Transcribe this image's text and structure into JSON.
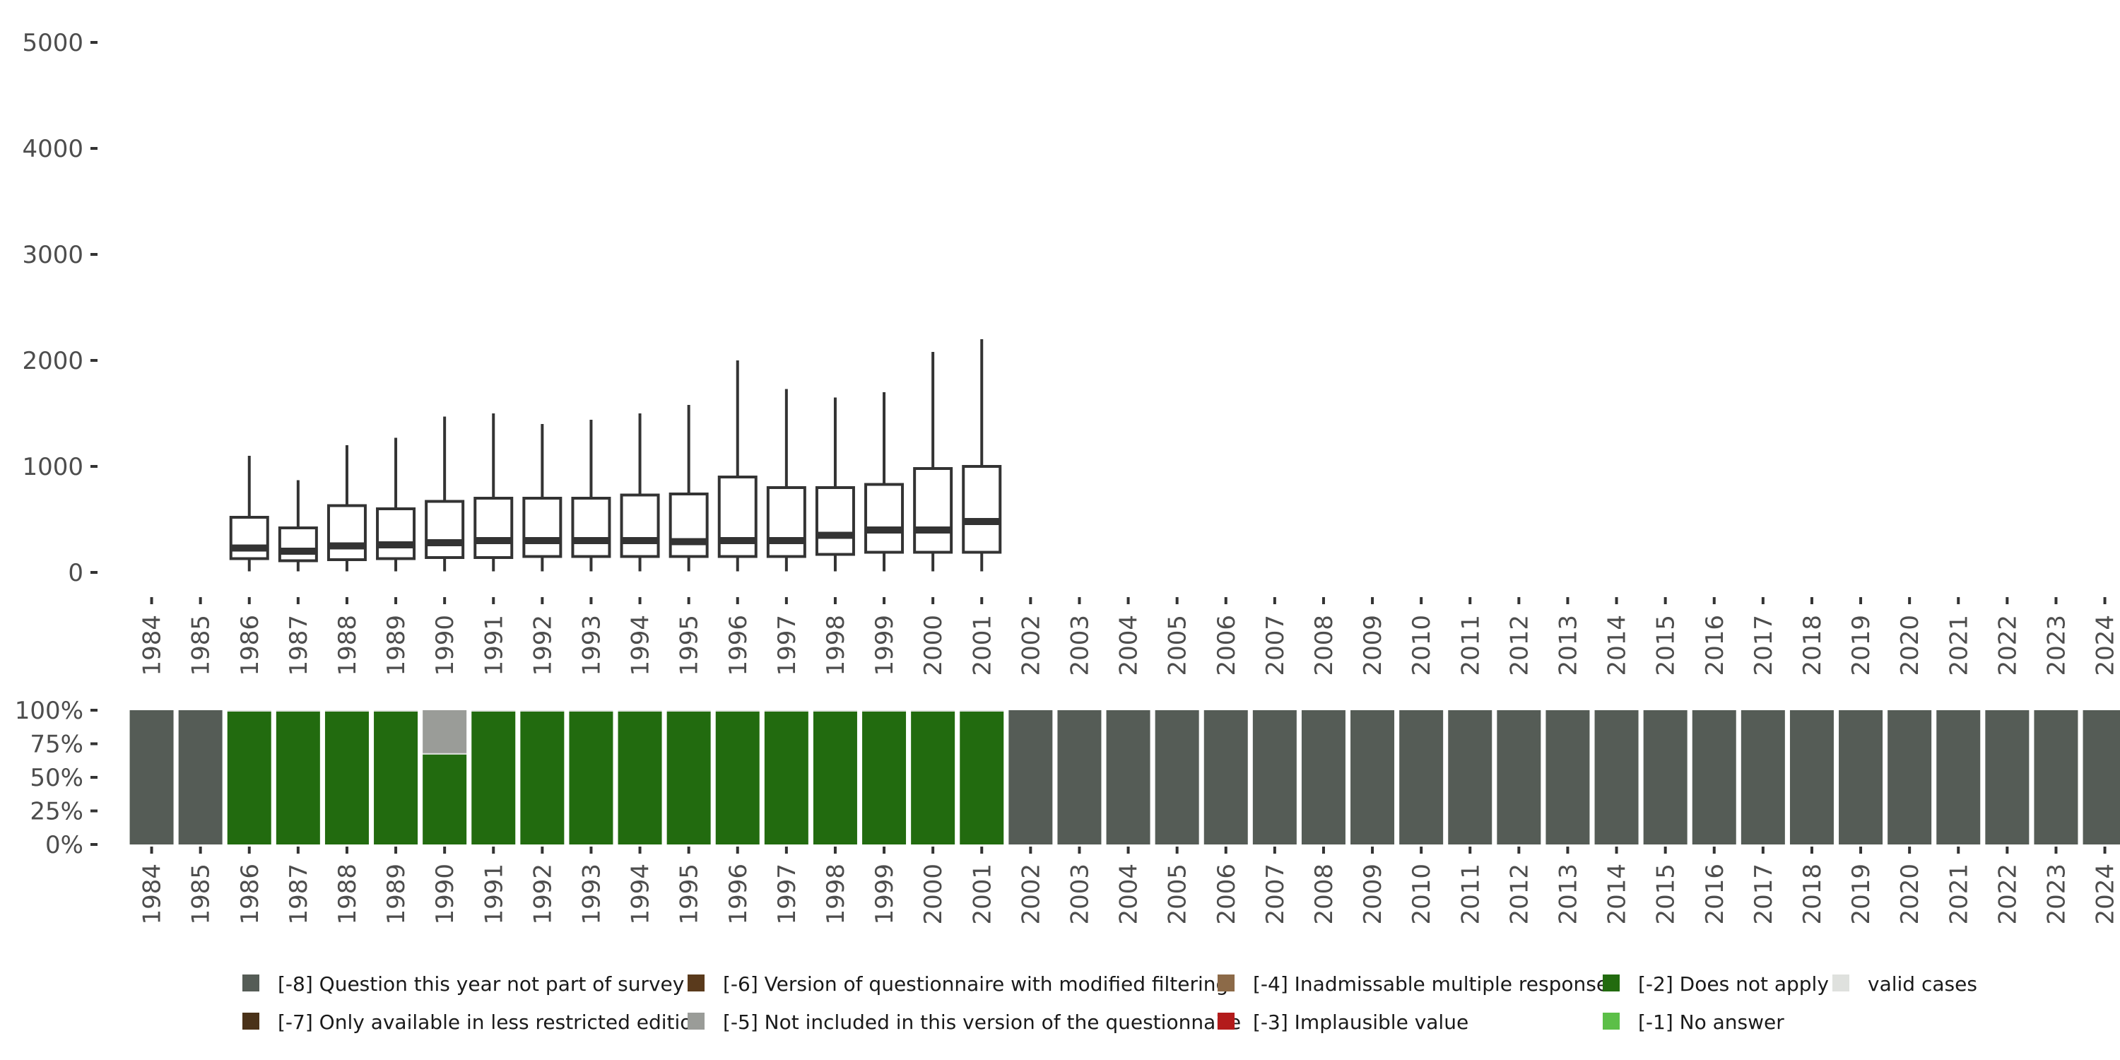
{
  "chart_data": [
    {
      "type": "boxplot",
      "title": "",
      "xlabel": "",
      "ylabel": "",
      "ylim": [
        0,
        5000
      ],
      "y_ticks": [
        0,
        1000,
        2000,
        3000,
        4000,
        5000
      ],
      "y_tick_labels": [
        "0",
        "1000",
        "2000",
        "3000",
        "4000",
        "5000"
      ],
      "categories": [
        "1984",
        "1985",
        "1986",
        "1987",
        "1988",
        "1989",
        "1990",
        "1991",
        "1992",
        "1993",
        "1994",
        "1995",
        "1996",
        "1997",
        "1998",
        "1999",
        "2000",
        "2001",
        "2002",
        "2003",
        "2004",
        "2005",
        "2006",
        "2007",
        "2008",
        "2009",
        "2010",
        "2011",
        "2012",
        "2013",
        "2014",
        "2015",
        "2016",
        "2017",
        "2018",
        "2019",
        "2020",
        "2021",
        "2022",
        "2023",
        "2024"
      ],
      "boxes": [
        {
          "year": "1986",
          "min": 10,
          "q1": 130,
          "median": 230,
          "q3": 520,
          "max": 1100
        },
        {
          "year": "1987",
          "min": 10,
          "q1": 110,
          "median": 200,
          "q3": 420,
          "max": 870
        },
        {
          "year": "1988",
          "min": 10,
          "q1": 120,
          "median": 250,
          "q3": 630,
          "max": 1200
        },
        {
          "year": "1989",
          "min": 10,
          "q1": 130,
          "median": 260,
          "q3": 600,
          "max": 1270
        },
        {
          "year": "1990",
          "min": 10,
          "q1": 140,
          "median": 280,
          "q3": 670,
          "max": 1470
        },
        {
          "year": "1991",
          "min": 10,
          "q1": 140,
          "median": 300,
          "q3": 700,
          "max": 1500
        },
        {
          "year": "1992",
          "min": 10,
          "q1": 150,
          "median": 300,
          "q3": 700,
          "max": 1400
        },
        {
          "year": "1993",
          "min": 10,
          "q1": 150,
          "median": 300,
          "q3": 700,
          "max": 1440
        },
        {
          "year": "1994",
          "min": 10,
          "q1": 150,
          "median": 300,
          "q3": 730,
          "max": 1500
        },
        {
          "year": "1995",
          "min": 10,
          "q1": 150,
          "median": 290,
          "q3": 740,
          "max": 1580
        },
        {
          "year": "1996",
          "min": 10,
          "q1": 150,
          "median": 300,
          "q3": 900,
          "max": 2000
        },
        {
          "year": "1997",
          "min": 10,
          "q1": 150,
          "median": 300,
          "q3": 800,
          "max": 1730
        },
        {
          "year": "1998",
          "min": 10,
          "q1": 170,
          "median": 350,
          "q3": 800,
          "max": 1650
        },
        {
          "year": "1999",
          "min": 10,
          "q1": 190,
          "median": 400,
          "q3": 830,
          "max": 1700
        },
        {
          "year": "2000",
          "min": 10,
          "q1": 190,
          "median": 400,
          "q3": 980,
          "max": 2080
        },
        {
          "year": "2001",
          "min": 10,
          "q1": 190,
          "median": 480,
          "q3": 1000,
          "max": 2200
        }
      ]
    },
    {
      "type": "stacked_bar",
      "title": "",
      "xlabel": "",
      "ylabel": "",
      "ylim": [
        0,
        100
      ],
      "y_ticks": [
        0,
        25,
        50,
        75,
        100
      ],
      "y_tick_labels": [
        "0%",
        "25%",
        "50%",
        "75%",
        "100%"
      ],
      "categories": [
        "1984",
        "1985",
        "1986",
        "1987",
        "1988",
        "1989",
        "1990",
        "1991",
        "1992",
        "1993",
        "1994",
        "1995",
        "1996",
        "1997",
        "1998",
        "1999",
        "2000",
        "2001",
        "2002",
        "2003",
        "2004",
        "2005",
        "2006",
        "2007",
        "2008",
        "2009",
        "2010",
        "2011",
        "2012",
        "2013",
        "2014",
        "2015",
        "2016",
        "2017",
        "2018",
        "2019",
        "2020",
        "2021",
        "2022",
        "2023",
        "2024"
      ],
      "series": [
        {
          "name": "[-2] Does not apply",
          "color": "#226b0f",
          "values": [
            0,
            0,
            99,
            99,
            99,
            99,
            67,
            99,
            99,
            99,
            99,
            99,
            99,
            99,
            99,
            99,
            99,
            99,
            0,
            0,
            0,
            0,
            0,
            0,
            0,
            0,
            0,
            0,
            0,
            0,
            0,
            0,
            0,
            0,
            0,
            0,
            0,
            0,
            0,
            0,
            0
          ]
        },
        {
          "name": "valid cases",
          "color": "#dfe1de",
          "values": [
            0,
            0,
            1,
            1,
            1,
            1,
            1,
            1,
            1,
            1,
            1,
            1,
            1,
            1,
            1,
            1,
            1,
            1,
            0,
            0,
            0,
            0,
            0,
            0,
            0,
            0,
            0,
            0,
            0,
            0,
            0,
            0,
            0,
            0,
            0,
            0,
            0,
            0,
            0,
            0,
            0
          ]
        },
        {
          "name": "[-5] Not included in this version of the questionnaire",
          "color": "#9a9c98",
          "values": [
            0,
            0,
            0,
            0,
            0,
            0,
            32,
            0,
            0,
            0,
            0,
            0,
            0,
            0,
            0,
            0,
            0,
            0,
            0,
            0,
            0,
            0,
            0,
            0,
            0,
            0,
            0,
            0,
            0,
            0,
            0,
            0,
            0,
            0,
            0,
            0,
            0,
            0,
            0,
            0,
            0
          ]
        },
        {
          "name": "[-8] Question this year not part of survey",
          "color": "#555c56",
          "values": [
            100,
            100,
            0,
            0,
            0,
            0,
            0,
            0,
            0,
            0,
            0,
            0,
            0,
            0,
            0,
            0,
            0,
            0,
            100,
            100,
            100,
            100,
            100,
            100,
            100,
            100,
            100,
            100,
            100,
            100,
            100,
            100,
            100,
            100,
            100,
            100,
            100,
            100,
            100,
            100,
            100
          ]
        }
      ]
    }
  ],
  "legend": {
    "position": "bottom",
    "items": [
      {
        "label": "[-8] Question this year not part of survey",
        "color": "#555c56"
      },
      {
        "label": "[-6] Version of questionnaire with modified filtering",
        "color": "#5a3a1c"
      },
      {
        "label": "[-4] Inadmissable multiple response",
        "color": "#8c6a48"
      },
      {
        "label": "[-2] Does not apply",
        "color": "#226b0f"
      },
      {
        "label": "valid cases",
        "color": "#dfe1de"
      },
      {
        "label": "[-7] Only available in less restricted edition",
        "color": "#4a3219"
      },
      {
        "label": "[-5] Not included in this version of the questionnaire",
        "color": "#9a9c98"
      },
      {
        "label": "[-3] Implausible value",
        "color": "#b31b1b"
      },
      {
        "label": "[-1] No answer",
        "color": "#5cbf48"
      }
    ]
  }
}
